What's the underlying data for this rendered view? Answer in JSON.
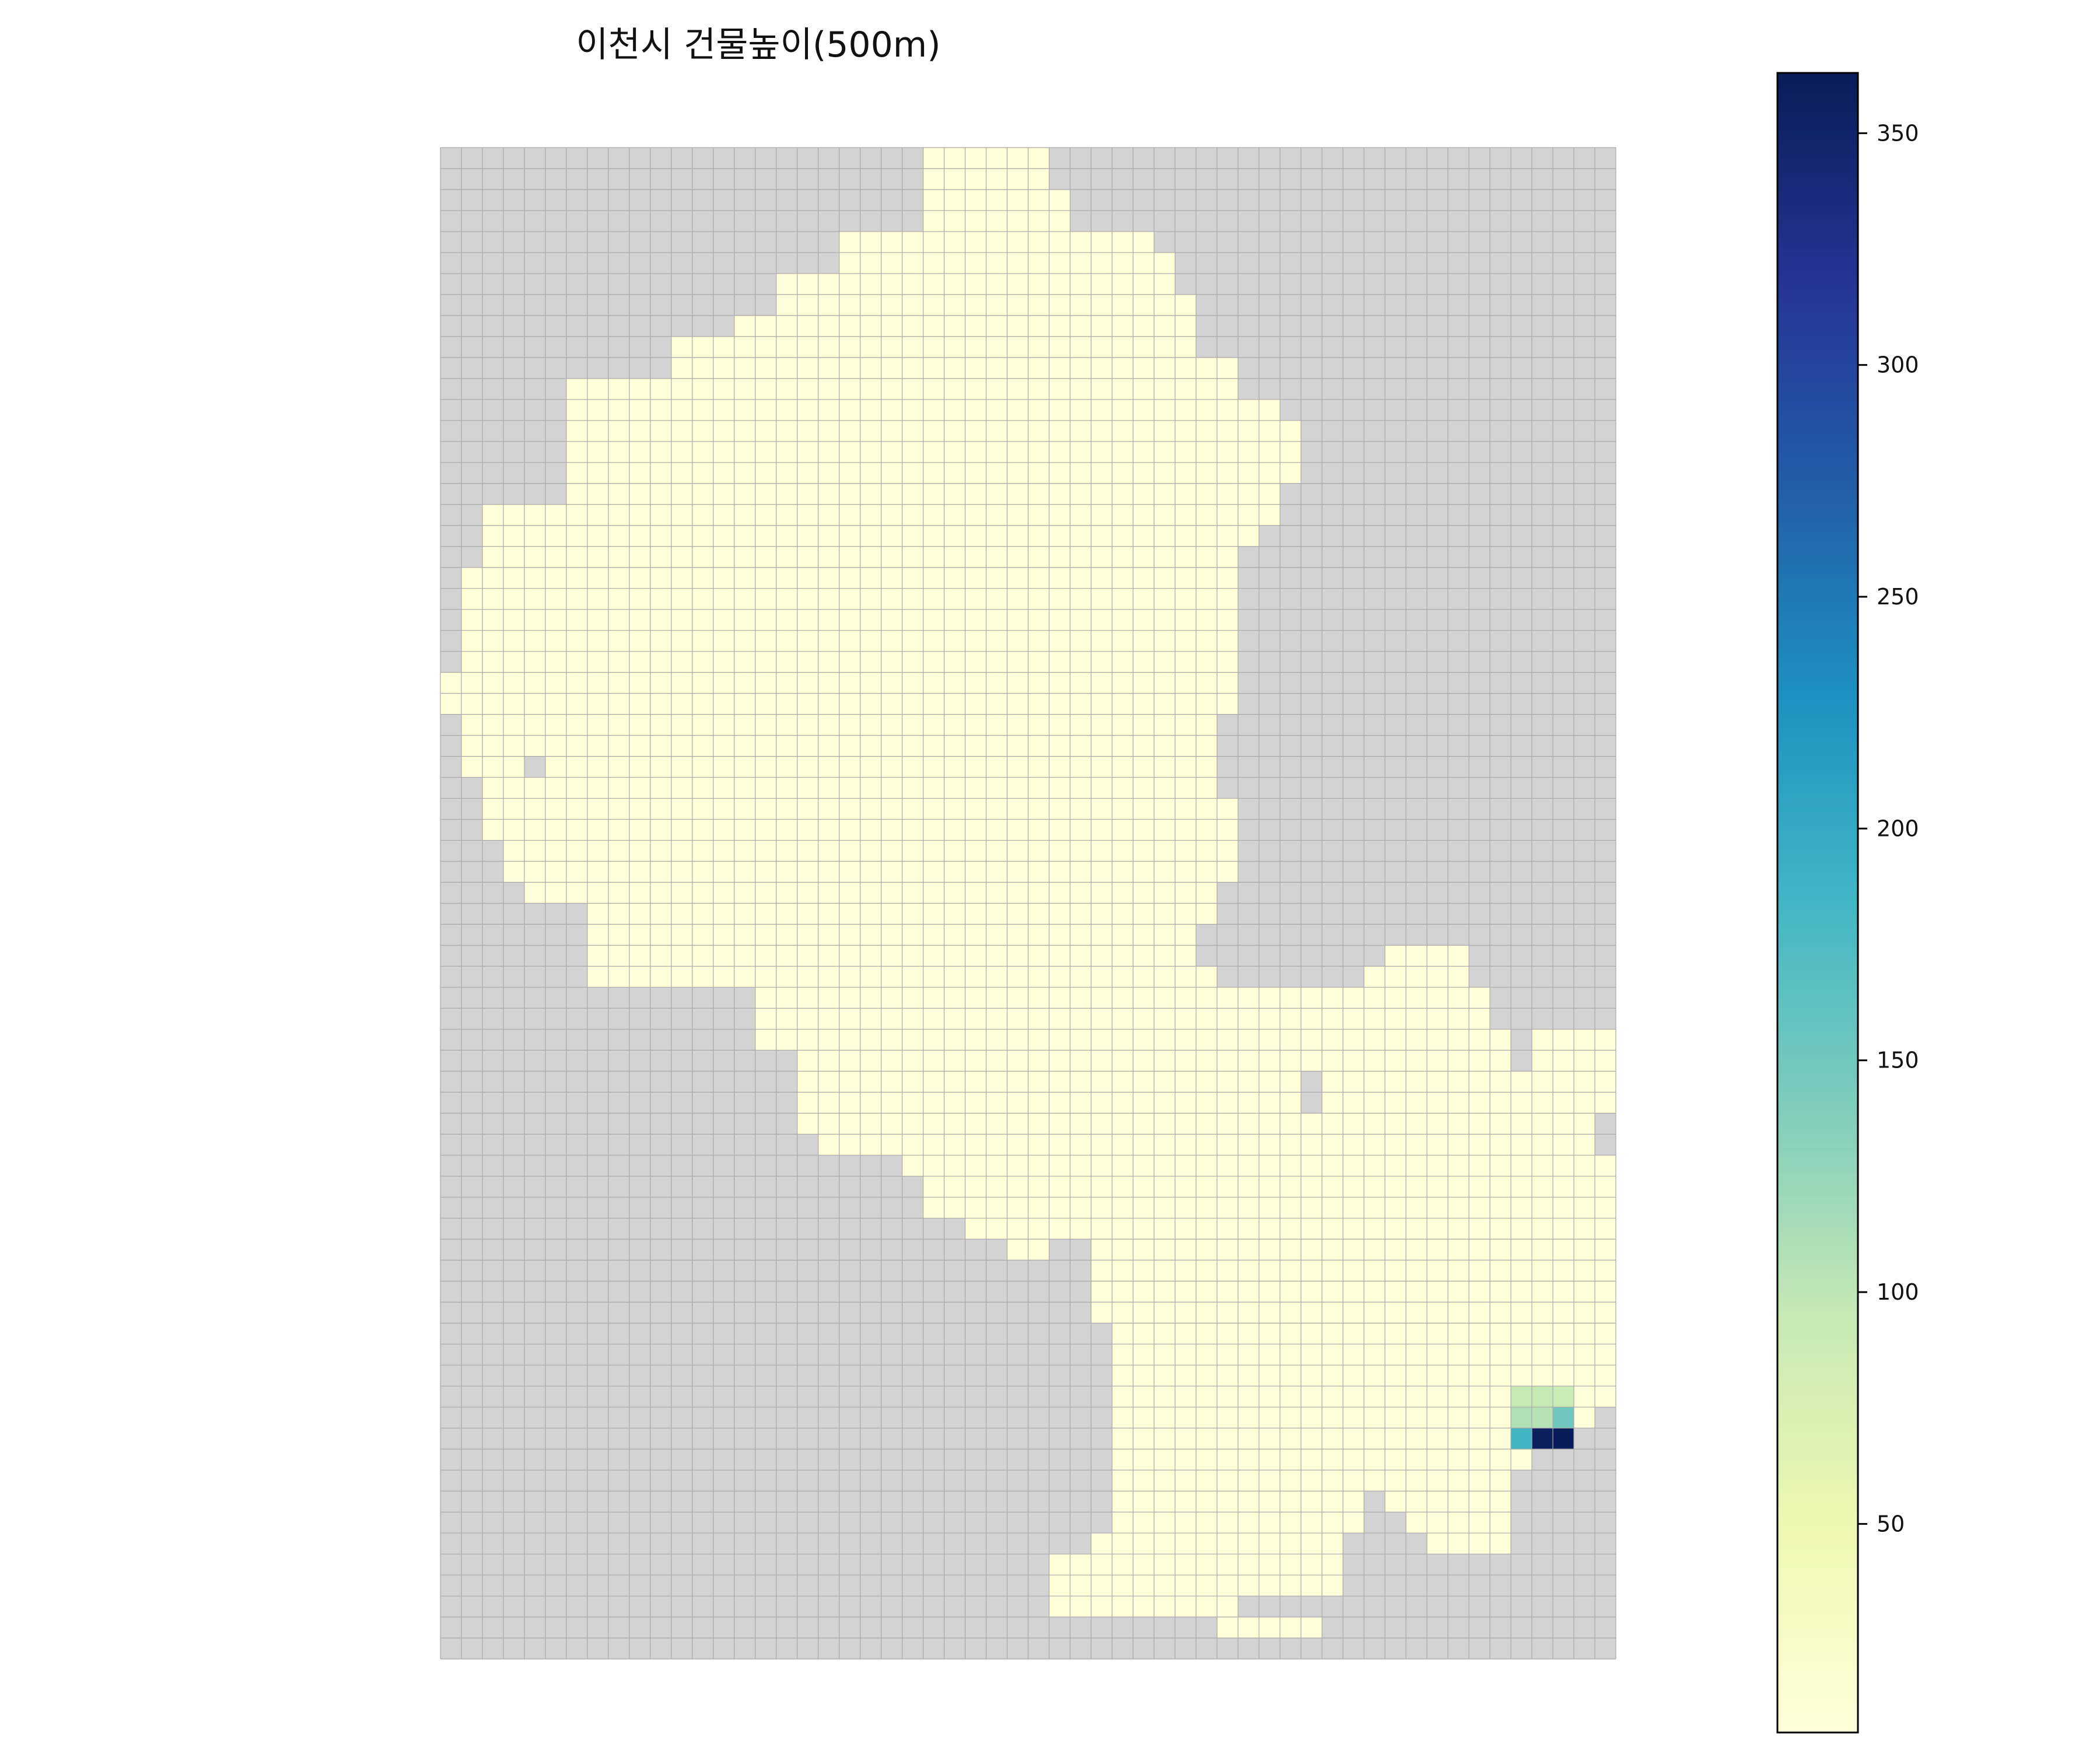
{
  "chart_data": {
    "type": "heatmap",
    "title": "이천시 건물높이(500m)",
    "colormap": "YlGnBu",
    "grid": {
      "rows": 72,
      "cols": 56
    },
    "background_color": "#d3d3d3",
    "gridline_color": "#a9a9a9",
    "default_value": 5,
    "colorbar": {
      "vmin": 5,
      "vmax": 363,
      "ticks": [
        50,
        100,
        150,
        200,
        250,
        300,
        350
      ],
      "tick_labels": [
        "50",
        "100",
        "150",
        "200",
        "250",
        "300",
        "350"
      ]
    },
    "hotspots": [
      {
        "row": 59,
        "col": 51,
        "value": 95
      },
      {
        "row": 59,
        "col": 52,
        "value": 95
      },
      {
        "row": 59,
        "col": 53,
        "value": 90
      },
      {
        "row": 60,
        "col": 51,
        "value": 110
      },
      {
        "row": 60,
        "col": 52,
        "value": 105
      },
      {
        "row": 60,
        "col": 53,
        "value": 150
      },
      {
        "row": 61,
        "col": 51,
        "value": 185
      },
      {
        "row": 61,
        "col": 52,
        "value": 360
      },
      {
        "row": 61,
        "col": 53,
        "value": 363
      }
    ],
    "region_rows": [
      [
        [
          23,
          28
        ]
      ],
      [
        [
          23,
          28
        ]
      ],
      [
        [
          23,
          29
        ]
      ],
      [
        [
          23,
          29
        ]
      ],
      [
        [
          19,
          33
        ]
      ],
      [
        [
          19,
          34
        ]
      ],
      [
        [
          16,
          34
        ]
      ],
      [
        [
          16,
          35
        ]
      ],
      [
        [
          14,
          35
        ]
      ],
      [
        [
          11,
          35
        ]
      ],
      [
        [
          11,
          37
        ]
      ],
      [
        [
          6,
          37
        ]
      ],
      [
        [
          6,
          39
        ]
      ],
      [
        [
          6,
          40
        ]
      ],
      [
        [
          6,
          40
        ]
      ],
      [
        [
          6,
          40
        ]
      ],
      [
        [
          6,
          39
        ]
      ],
      [
        [
          2,
          39
        ]
      ],
      [
        [
          2,
          38
        ]
      ],
      [
        [
          2,
          37
        ]
      ],
      [
        [
          1,
          37
        ]
      ],
      [
        [
          1,
          37
        ]
      ],
      [
        [
          1,
          37
        ]
      ],
      [
        [
          1,
          37
        ]
      ],
      [
        [
          1,
          37
        ]
      ],
      [
        [
          0,
          37
        ]
      ],
      [
        [
          0,
          37
        ]
      ],
      [
        [
          1,
          36
        ]
      ],
      [
        [
          1,
          36
        ]
      ],
      [
        [
          1,
          3
        ],
        [
          5,
          36
        ]
      ],
      [
        [
          2,
          36
        ]
      ],
      [
        [
          2,
          37
        ]
      ],
      [
        [
          2,
          37
        ]
      ],
      [
        [
          3,
          37
        ]
      ],
      [
        [
          3,
          37
        ]
      ],
      [
        [
          4,
          36
        ]
      ],
      [
        [
          7,
          36
        ]
      ],
      [
        [
          7,
          35
        ]
      ],
      [
        [
          7,
          35
        ],
        [
          45,
          48
        ]
      ],
      [
        [
          7,
          36
        ],
        [
          44,
          48
        ]
      ],
      [
        [
          15,
          49
        ]
      ],
      [
        [
          15,
          49
        ]
      ],
      [
        [
          15,
          50
        ],
        [
          52,
          55
        ]
      ],
      [
        [
          17,
          50
        ],
        [
          52,
          55
        ]
      ],
      [
        [
          17,
          40
        ],
        [
          42,
          55
        ]
      ],
      [
        [
          17,
          40
        ],
        [
          42,
          55
        ]
      ],
      [
        [
          17,
          54
        ]
      ],
      [
        [
          18,
          54
        ]
      ],
      [
        [
          22,
          55
        ]
      ],
      [
        [
          23,
          55
        ]
      ],
      [
        [
          23,
          55
        ]
      ],
      [
        [
          25,
          55
        ]
      ],
      [
        [
          27,
          28
        ],
        [
          31,
          55
        ]
      ],
      [
        [
          31,
          55
        ]
      ],
      [
        [
          31,
          55
        ]
      ],
      [
        [
          31,
          55
        ]
      ],
      [
        [
          32,
          55
        ]
      ],
      [
        [
          32,
          55
        ]
      ],
      [
        [
          32,
          55
        ]
      ],
      [
        [
          32,
          55
        ]
      ],
      [
        [
          32,
          54
        ]
      ],
      [
        [
          32,
          53
        ]
      ],
      [
        [
          32,
          51
        ]
      ],
      [
        [
          32,
          50
        ]
      ],
      [
        [
          32,
          43
        ],
        [
          45,
          50
        ]
      ],
      [
        [
          32,
          43
        ],
        [
          46,
          50
        ]
      ],
      [
        [
          31,
          42
        ],
        [
          47,
          50
        ]
      ],
      [
        [
          29,
          42
        ]
      ],
      [
        [
          29,
          42
        ]
      ],
      [
        [
          29,
          37
        ]
      ],
      [
        [
          37,
          41
        ]
      ]
    ]
  }
}
